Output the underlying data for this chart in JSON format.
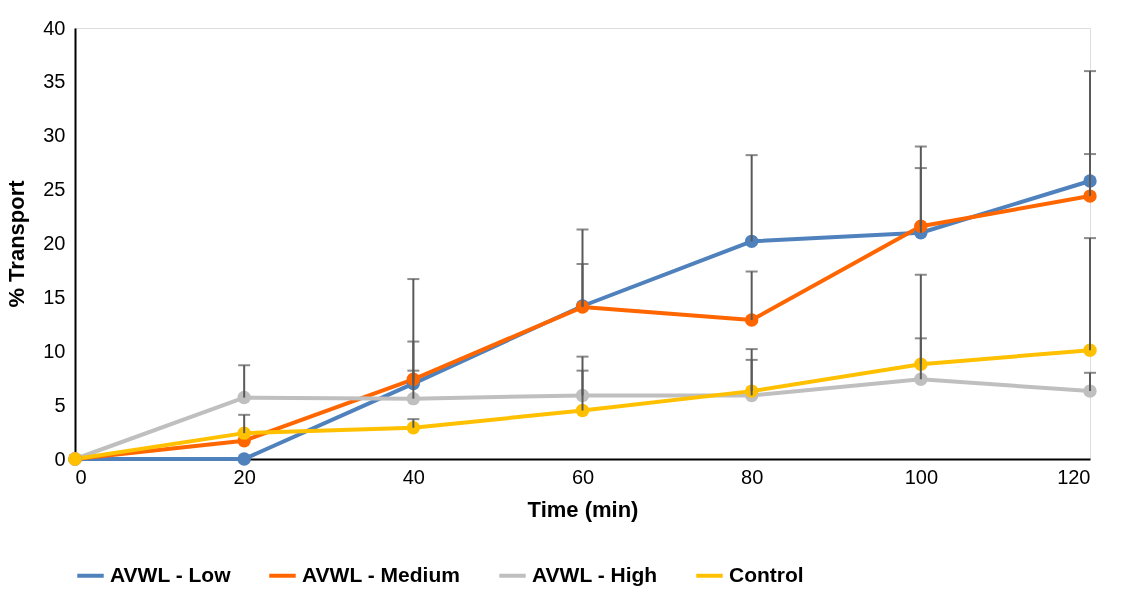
{
  "chart_data": {
    "type": "line",
    "xlabel": "Time (min)",
    "ylabel": "% Transport",
    "x": [
      0,
      20,
      40,
      60,
      80,
      100,
      120
    ],
    "xlim": [
      0,
      120
    ],
    "xticks": [
      0,
      20,
      40,
      60,
      80,
      100,
      120
    ],
    "ylim": [
      0,
      40
    ],
    "yticks": [
      0,
      5,
      10,
      15,
      20,
      25,
      30,
      35,
      40
    ],
    "grid": false,
    "legend": "bottom",
    "marker": "circle",
    "line_style": "solid",
    "series": [
      {
        "name": "AVWL - Low",
        "color": "#4f81bd",
        "values": [
          0,
          0,
          7.0,
          14.2,
          20.2,
          21.0,
          25.8
        ],
        "errors": [
          null,
          null,
          [
            7.0,
            16.7
          ],
          [
            14.2,
            21.3
          ],
          [
            20.2,
            28.2
          ],
          [
            21.0,
            29.0
          ],
          [
            25.8,
            36.0
          ]
        ]
      },
      {
        "name": "AVWL - Medium",
        "color": "#ff6600",
        "values": [
          0,
          1.7,
          7.4,
          14.1,
          12.9,
          21.6,
          24.4
        ],
        "errors": [
          null,
          null,
          [
            7.4,
            10.9
          ],
          [
            14.1,
            18.1
          ],
          [
            12.9,
            17.4
          ],
          [
            21.6,
            27.0
          ],
          [
            24.4,
            28.3
          ]
        ]
      },
      {
        "name": "AVWL - High",
        "color": "#bfbfbf",
        "values": [
          0,
          5.7,
          5.6,
          5.9,
          5.9,
          7.4,
          6.3
        ],
        "errors": [
          null,
          [
            5.7,
            8.7
          ],
          [
            5.6,
            8.2
          ],
          [
            5.9,
            9.5
          ],
          [
            5.9,
            10.2
          ],
          [
            7.4,
            11.2
          ],
          [
            6.3,
            8.0
          ]
        ]
      },
      {
        "name": "Control",
        "color": "#ffc000",
        "values": [
          0,
          2.4,
          2.9,
          4.5,
          6.3,
          8.8,
          10.1
        ],
        "errors": [
          null,
          [
            2.4,
            4.1
          ],
          [
            2.9,
            3.7
          ],
          [
            4.5,
            8.2
          ],
          [
            6.3,
            9.2
          ],
          [
            8.8,
            17.1
          ],
          [
            10.1,
            20.5
          ]
        ]
      }
    ]
  }
}
